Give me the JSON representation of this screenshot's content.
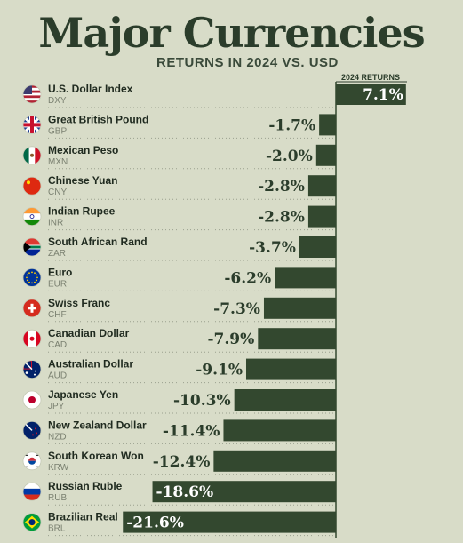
{
  "title": "Major Currencies",
  "subtitle": "RETURNS IN 2024 VS. USD",
  "colors": {
    "bar": "#33482f",
    "text": "#2b3d2b",
    "background": "#d8dcc8"
  },
  "chart_data": {
    "type": "bar",
    "orientation": "horizontal",
    "series_header": "2024 RETURNS",
    "unit": "%",
    "categories": [
      "U.S. Dollar Index",
      "Great British Pound",
      "Mexican Peso",
      "Chinese Yuan",
      "Indian Rupee",
      "South African Rand",
      "Euro",
      "Swiss Franc",
      "Canadian Dollar",
      "Australian Dollar",
      "Japanese Yen",
      "New Zealand Dollar",
      "South Korean Won",
      "Russian Ruble",
      "Brazilian Real"
    ],
    "codes": [
      "DXY",
      "GBP",
      "MXN",
      "CNY",
      "INR",
      "ZAR",
      "EUR",
      "CHF",
      "CAD",
      "AUD",
      "JPY",
      "NZD",
      "KRW",
      "RUB",
      "BRL"
    ],
    "values": [
      7.1,
      -1.7,
      -2.0,
      -2.8,
      -2.8,
      -3.7,
      -6.2,
      -7.3,
      -7.9,
      -9.1,
      -10.3,
      -11.4,
      -12.4,
      -18.6,
      -21.6
    ],
    "labels": [
      "7.1%",
      "-1.7%",
      "-2.0%",
      "-2.8%",
      "-2.8%",
      "-3.7%",
      "-6.2%",
      "-7.3%",
      "-7.9%",
      "-9.1%",
      "-10.3%",
      "-11.4%",
      "-12.4%",
      "-18.6%",
      "-21.6%"
    ],
    "flag_icons": [
      "us-flag-icon",
      "uk-flag-icon",
      "mexico-flag-icon",
      "china-flag-icon",
      "india-flag-icon",
      "south-africa-flag-icon",
      "eu-flag-icon",
      "switzerland-flag-icon",
      "canada-flag-icon",
      "australia-flag-icon",
      "japan-flag-icon",
      "new-zealand-flag-icon",
      "south-korea-flag-icon",
      "russia-flag-icon",
      "brazil-flag-icon"
    ]
  }
}
